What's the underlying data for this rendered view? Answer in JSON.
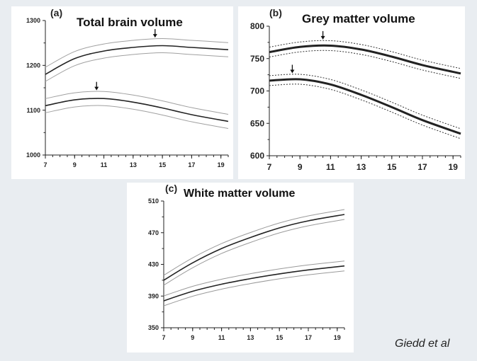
{
  "citation": "Giedd et al",
  "chart_data": [
    {
      "type": "line",
      "panel": "(a)",
      "title": "Total brain volume",
      "xlabel": "",
      "ylabel": "",
      "xlim": [
        7,
        19.5
      ],
      "ylim": [
        1000,
        1300
      ],
      "xticks": [
        7,
        9,
        11,
        13,
        15,
        17,
        19
      ],
      "yticks": [
        1000,
        1100,
        1200,
        1300
      ],
      "grid": false,
      "series": [
        {
          "x": [
            7,
            9,
            11,
            13,
            15,
            17,
            19.5
          ],
          "y": [
            1180,
            1215,
            1232,
            1240,
            1244,
            1240,
            1235
          ],
          "peak_x": 14.5,
          "style": "solid",
          "color": "#222222"
        },
        {
          "x": [
            7,
            9,
            11,
            13,
            15,
            17,
            19.5
          ],
          "y": [
            1110,
            1123,
            1126,
            1118,
            1105,
            1090,
            1075
          ],
          "peak_x": 10.5,
          "style": "solid",
          "color": "#222222"
        }
      ]
    },
    {
      "type": "line",
      "panel": "(b)",
      "title": "Grey matter volume",
      "xlabel": "",
      "ylabel": "",
      "xlim": [
        7,
        19.5
      ],
      "ylim": [
        600,
        800
      ],
      "xticks": [
        7,
        9,
        11,
        13,
        15,
        17,
        19
      ],
      "yticks": [
        600,
        650,
        700,
        750,
        800
      ],
      "grid": false,
      "series": [
        {
          "x": [
            7,
            9,
            11,
            13,
            15,
            17,
            19.5
          ],
          "y": [
            760,
            768,
            770,
            764,
            753,
            740,
            727
          ],
          "peak_x": 10.5,
          "style": "solid",
          "color": "#222222"
        },
        {
          "x": [
            7,
            9,
            11,
            13,
            15,
            17,
            19.5
          ],
          "y": [
            716,
            718,
            710,
            694,
            675,
            655,
            634
          ],
          "peak_x": 8.5,
          "style": "solid",
          "color": "#222222"
        }
      ]
    },
    {
      "type": "line",
      "panel": "(c)",
      "title": "White matter volume",
      "xlabel": "",
      "ylabel": "",
      "xlim": [
        7,
        19.5
      ],
      "ylim": [
        350,
        510
      ],
      "xticks": [
        7,
        9,
        11,
        13,
        15,
        17,
        19
      ],
      "yticks": [
        350,
        390,
        430,
        470,
        510
      ],
      "grid": false,
      "series": [
        {
          "x": [
            7,
            9,
            11,
            13,
            15,
            17,
            19.5
          ],
          "y": [
            410,
            432,
            450,
            464,
            476,
            485,
            493
          ],
          "style": "solid",
          "color": "#222222"
        },
        {
          "x": [
            7,
            9,
            11,
            13,
            15,
            17,
            19.5
          ],
          "y": [
            384,
            396,
            405,
            412,
            418,
            423,
            428
          ],
          "style": "solid",
          "color": "#222222"
        }
      ]
    }
  ]
}
